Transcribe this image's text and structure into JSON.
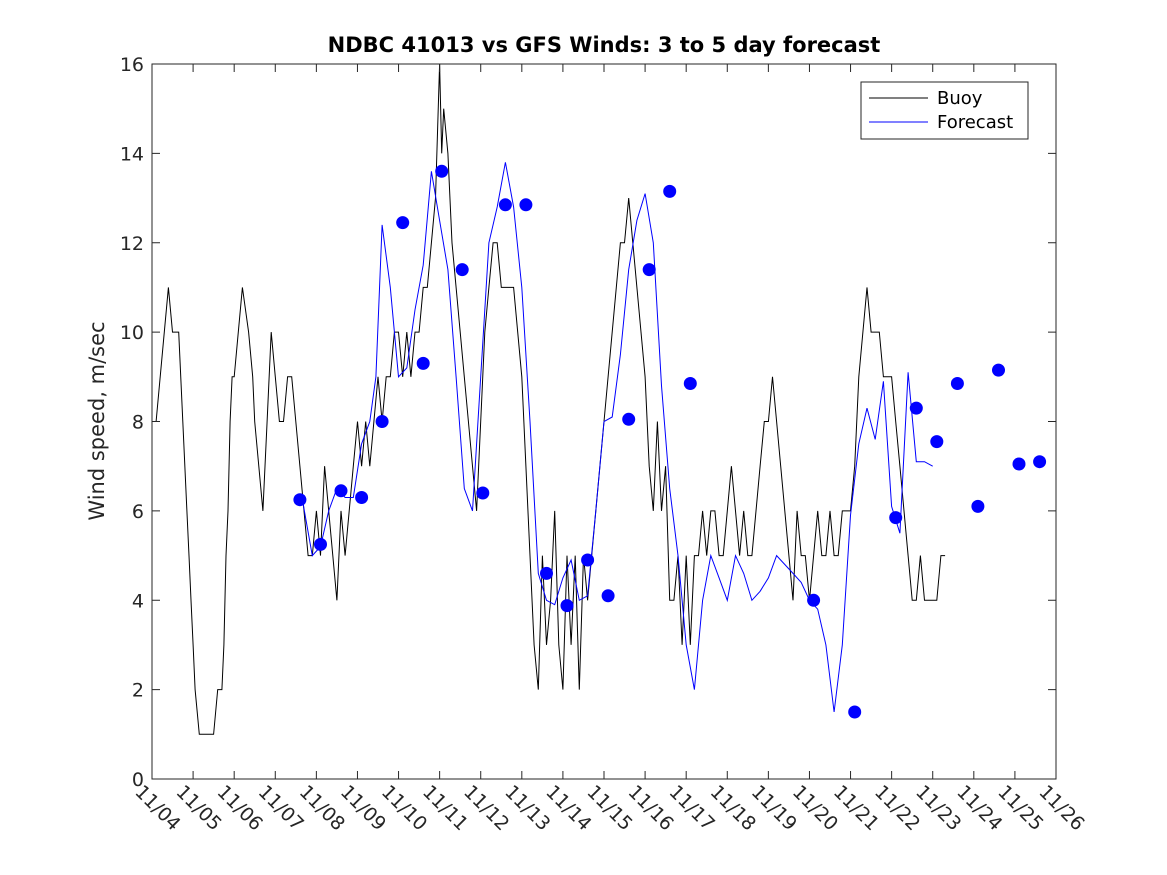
{
  "chart_data": {
    "type": "line",
    "title": "NDBC 41013 vs GFS Winds: 3 to 5 day forecast",
    "xlabel": "",
    "ylabel": "Wind speed, m/sec",
    "xlim": [
      0,
      22
    ],
    "ylim": [
      0,
      16
    ],
    "yticks": [
      0,
      2,
      4,
      6,
      8,
      10,
      12,
      14,
      16
    ],
    "xticks": [
      {
        "pos": 0,
        "label": "11/04"
      },
      {
        "pos": 1,
        "label": "11/05"
      },
      {
        "pos": 2,
        "label": "11/06"
      },
      {
        "pos": 3,
        "label": "11/07"
      },
      {
        "pos": 4,
        "label": "11/08"
      },
      {
        "pos": 5,
        "label": "11/09"
      },
      {
        "pos": 6,
        "label": "11/10"
      },
      {
        "pos": 7,
        "label": "11/11"
      },
      {
        "pos": 8,
        "label": "11/12"
      },
      {
        "pos": 9,
        "label": "11/13"
      },
      {
        "pos": 10,
        "label": "11/14"
      },
      {
        "pos": 11,
        "label": "11/15"
      },
      {
        "pos": 12,
        "label": "11/16"
      },
      {
        "pos": 13,
        "label": "11/17"
      },
      {
        "pos": 14,
        "label": "11/18"
      },
      {
        "pos": 15,
        "label": "11/19"
      },
      {
        "pos": 16,
        "label": "11/20"
      },
      {
        "pos": 17,
        "label": "11/21"
      },
      {
        "pos": 18,
        "label": "11/22"
      },
      {
        "pos": 19,
        "label": "11/23"
      },
      {
        "pos": 20,
        "label": "11/24"
      },
      {
        "pos": 21,
        "label": "11/25"
      },
      {
        "pos": 22,
        "label": "11/26"
      }
    ],
    "grid": false,
    "legend_position": "top-right",
    "colors": {
      "buoy": "#000000",
      "forecast": "#0000ff"
    },
    "series": [
      {
        "name": "Buoy",
        "color": "#000000",
        "points": [
          [
            0,
            8
          ],
          [
            0.1,
            8
          ],
          [
            0.2,
            9
          ],
          [
            0.3,
            10
          ],
          [
            0.4,
            11
          ],
          [
            0.5,
            10
          ],
          [
            0.65,
            10
          ],
          [
            0.75,
            8
          ],
          [
            0.85,
            6
          ],
          [
            0.9,
            5
          ],
          [
            0.95,
            4
          ],
          [
            1.0,
            3
          ],
          [
            1.05,
            2
          ],
          [
            1.15,
            1
          ],
          [
            1.3,
            1
          ],
          [
            1.5,
            1
          ],
          [
            1.6,
            2
          ],
          [
            1.7,
            2
          ],
          [
            1.75,
            3
          ],
          [
            1.8,
            5
          ],
          [
            1.85,
            6
          ],
          [
            1.9,
            8
          ],
          [
            1.95,
            9
          ],
          [
            2.0,
            9
          ],
          [
            2.1,
            10
          ],
          [
            2.2,
            11
          ],
          [
            2.35,
            10
          ],
          [
            2.45,
            9
          ],
          [
            2.5,
            8
          ],
          [
            2.6,
            7
          ],
          [
            2.7,
            6
          ],
          [
            2.8,
            8
          ],
          [
            2.9,
            10
          ],
          [
            3.0,
            9
          ],
          [
            3.1,
            8
          ],
          [
            3.2,
            8
          ],
          [
            3.3,
            9
          ],
          [
            3.4,
            9
          ],
          [
            3.5,
            8
          ],
          [
            3.6,
            7
          ],
          [
            3.7,
            6
          ],
          [
            3.8,
            5
          ],
          [
            3.9,
            5
          ],
          [
            4.0,
            6
          ],
          [
            4.1,
            5
          ],
          [
            4.2,
            7
          ],
          [
            4.3,
            6
          ],
          [
            4.4,
            5
          ],
          [
            4.5,
            4
          ],
          [
            4.6,
            6
          ],
          [
            4.7,
            5
          ],
          [
            4.8,
            6
          ],
          [
            4.9,
            7
          ],
          [
            5.0,
            8
          ],
          [
            5.1,
            7
          ],
          [
            5.2,
            8
          ],
          [
            5.3,
            7
          ],
          [
            5.4,
            8
          ],
          [
            5.5,
            9
          ],
          [
            5.6,
            8
          ],
          [
            5.7,
            9
          ],
          [
            5.8,
            9
          ],
          [
            5.9,
            10
          ],
          [
            6.0,
            10
          ],
          [
            6.1,
            9
          ],
          [
            6.2,
            10
          ],
          [
            6.3,
            9
          ],
          [
            6.4,
            10
          ],
          [
            6.5,
            10
          ],
          [
            6.6,
            11
          ],
          [
            6.7,
            11
          ],
          [
            6.8,
            12
          ],
          [
            6.9,
            13
          ],
          [
            7.0,
            16
          ],
          [
            7.05,
            14
          ],
          [
            7.1,
            15
          ],
          [
            7.2,
            14
          ],
          [
            7.3,
            12
          ],
          [
            7.4,
            11
          ],
          [
            7.5,
            10
          ],
          [
            7.6,
            9
          ],
          [
            7.7,
            8
          ],
          [
            7.8,
            7
          ],
          [
            7.9,
            6
          ],
          [
            8.0,
            8
          ],
          [
            8.1,
            10
          ],
          [
            8.2,
            11
          ],
          [
            8.3,
            12
          ],
          [
            8.4,
            12
          ],
          [
            8.5,
            11
          ],
          [
            8.6,
            11
          ],
          [
            8.7,
            11
          ],
          [
            8.8,
            11
          ],
          [
            8.9,
            10
          ],
          [
            9.0,
            9
          ],
          [
            9.1,
            7
          ],
          [
            9.2,
            5
          ],
          [
            9.3,
            3
          ],
          [
            9.4,
            2
          ],
          [
            9.5,
            5
          ],
          [
            9.6,
            3
          ],
          [
            9.7,
            4
          ],
          [
            9.8,
            6
          ],
          [
            9.9,
            3
          ],
          [
            10.0,
            2
          ],
          [
            10.1,
            5
          ],
          [
            10.2,
            3
          ],
          [
            10.3,
            5
          ],
          [
            10.4,
            2
          ],
          [
            10.5,
            5
          ],
          [
            10.6,
            4
          ],
          [
            10.7,
            5
          ],
          [
            10.8,
            6
          ],
          [
            10.9,
            7
          ],
          [
            11.0,
            8
          ],
          [
            11.1,
            9
          ],
          [
            11.2,
            10
          ],
          [
            11.3,
            11
          ],
          [
            11.4,
            12
          ],
          [
            11.5,
            12
          ],
          [
            11.6,
            13
          ],
          [
            11.7,
            12
          ],
          [
            11.8,
            11
          ],
          [
            11.9,
            10
          ],
          [
            12.0,
            9
          ],
          [
            12.1,
            7
          ],
          [
            12.2,
            6
          ],
          [
            12.3,
            8
          ],
          [
            12.4,
            6
          ],
          [
            12.5,
            7
          ],
          [
            12.6,
            4
          ],
          [
            12.7,
            4
          ],
          [
            12.8,
            5
          ],
          [
            12.9,
            3
          ],
          [
            13.0,
            5
          ],
          [
            13.1,
            3
          ],
          [
            13.2,
            5
          ],
          [
            13.3,
            5
          ],
          [
            13.4,
            6
          ],
          [
            13.5,
            5
          ],
          [
            13.6,
            6
          ],
          [
            13.7,
            6
          ],
          [
            13.8,
            5
          ],
          [
            13.9,
            5
          ],
          [
            14.0,
            6
          ],
          [
            14.1,
            7
          ],
          [
            14.2,
            6
          ],
          [
            14.3,
            5
          ],
          [
            14.4,
            6
          ],
          [
            14.5,
            5
          ],
          [
            14.6,
            5
          ],
          [
            14.7,
            6
          ],
          [
            14.8,
            7
          ],
          [
            14.9,
            8
          ],
          [
            15.0,
            8
          ],
          [
            15.1,
            9
          ],
          [
            15.2,
            8
          ],
          [
            15.3,
            7
          ],
          [
            15.4,
            6
          ],
          [
            15.5,
            5
          ],
          [
            15.6,
            4
          ],
          [
            15.7,
            6
          ],
          [
            15.8,
            5
          ],
          [
            15.9,
            5
          ],
          [
            16.0,
            4
          ],
          [
            16.1,
            5
          ],
          [
            16.2,
            6
          ],
          [
            16.3,
            5
          ],
          [
            16.4,
            5
          ],
          [
            16.5,
            6
          ],
          [
            16.6,
            5
          ],
          [
            16.7,
            5
          ],
          [
            16.8,
            6
          ],
          [
            16.9,
            6
          ],
          [
            17.0,
            6
          ],
          [
            17.1,
            7
          ],
          [
            17.2,
            9
          ],
          [
            17.3,
            10
          ],
          [
            17.4,
            11
          ],
          [
            17.5,
            10
          ],
          [
            17.6,
            10
          ],
          [
            17.7,
            10
          ],
          [
            17.8,
            9
          ],
          [
            17.9,
            9
          ],
          [
            18.0,
            9
          ],
          [
            18.1,
            8
          ],
          [
            18.2,
            7
          ],
          [
            18.3,
            6
          ],
          [
            18.4,
            5
          ],
          [
            18.5,
            4
          ],
          [
            18.6,
            4
          ],
          [
            18.7,
            5
          ],
          [
            18.8,
            4
          ],
          [
            18.9,
            4
          ],
          [
            19.0,
            4
          ],
          [
            19.1,
            4
          ],
          [
            19.2,
            5
          ],
          [
            19.3,
            5
          ]
        ]
      },
      {
        "name": "Forecast",
        "color": "#0000ff",
        "points": [
          [
            3.65,
            6.3
          ],
          [
            3.9,
            5.0
          ],
          [
            4.1,
            5.2
          ],
          [
            4.3,
            6.0
          ],
          [
            4.5,
            6.5
          ],
          [
            4.7,
            6.3
          ],
          [
            4.9,
            6.3
          ],
          [
            5.1,
            7.5
          ],
          [
            5.3,
            8.0
          ],
          [
            5.45,
            9.0
          ],
          [
            5.6,
            12.4
          ],
          [
            5.8,
            11.0
          ],
          [
            6.0,
            9.0
          ],
          [
            6.2,
            9.2
          ],
          [
            6.4,
            10.5
          ],
          [
            6.6,
            11.5
          ],
          [
            6.8,
            13.6
          ],
          [
            7.0,
            12.5
          ],
          [
            7.2,
            11.4
          ],
          [
            7.4,
            9.0
          ],
          [
            7.6,
            6.5
          ],
          [
            7.8,
            6.0
          ],
          [
            8.0,
            9.0
          ],
          [
            8.2,
            12.0
          ],
          [
            8.4,
            12.8
          ],
          [
            8.6,
            13.8
          ],
          [
            8.8,
            12.8
          ],
          [
            9.0,
            11.0
          ],
          [
            9.2,
            8.0
          ],
          [
            9.4,
            4.6
          ],
          [
            9.6,
            4.0
          ],
          [
            9.8,
            3.9
          ],
          [
            10.0,
            4.5
          ],
          [
            10.2,
            4.9
          ],
          [
            10.4,
            4.0
          ],
          [
            10.6,
            4.1
          ],
          [
            10.8,
            6.0
          ],
          [
            11.0,
            8.0
          ],
          [
            11.2,
            8.1
          ],
          [
            11.4,
            9.5
          ],
          [
            11.6,
            11.4
          ],
          [
            11.8,
            12.5
          ],
          [
            12.0,
            13.1
          ],
          [
            12.2,
            12.0
          ],
          [
            12.4,
            8.8
          ],
          [
            12.6,
            6.5
          ],
          [
            12.8,
            5.0
          ],
          [
            13.0,
            3.0
          ],
          [
            13.2,
            2.0
          ],
          [
            13.4,
            4.0
          ],
          [
            13.6,
            5.0
          ],
          [
            13.8,
            4.5
          ],
          [
            14.0,
            4.0
          ],
          [
            14.2,
            5.0
          ],
          [
            14.4,
            4.6
          ],
          [
            14.6,
            4.0
          ],
          [
            14.8,
            4.2
          ],
          [
            15.0,
            4.5
          ],
          [
            15.2,
            5.0
          ],
          [
            15.4,
            4.8
          ],
          [
            15.6,
            4.6
          ],
          [
            15.8,
            4.4
          ],
          [
            16.0,
            4.0
          ],
          [
            16.2,
            3.8
          ],
          [
            16.4,
            3.0
          ],
          [
            16.6,
            1.5
          ],
          [
            16.8,
            3.0
          ],
          [
            17.0,
            5.9
          ],
          [
            17.2,
            7.5
          ],
          [
            17.4,
            8.3
          ],
          [
            17.6,
            7.6
          ],
          [
            17.8,
            8.9
          ],
          [
            18.0,
            6.1
          ],
          [
            18.2,
            5.5
          ],
          [
            18.4,
            9.1
          ],
          [
            18.6,
            7.1
          ],
          [
            18.8,
            7.1
          ],
          [
            19.0,
            7.0
          ]
        ]
      }
    ],
    "markers": [
      [
        3.6,
        6.25
      ],
      [
        4.1,
        5.25
      ],
      [
        4.6,
        6.45
      ],
      [
        5.1,
        6.3
      ],
      [
        5.6,
        8.0
      ],
      [
        6.1,
        12.45
      ],
      [
        6.6,
        9.3
      ],
      [
        7.05,
        13.6
      ],
      [
        7.55,
        11.4
      ],
      [
        8.05,
        6.4
      ],
      [
        8.6,
        12.85
      ],
      [
        9.1,
        12.85
      ],
      [
        9.6,
        4.6
      ],
      [
        10.1,
        3.88
      ],
      [
        10.6,
        4.9
      ],
      [
        11.1,
        4.1
      ],
      [
        11.6,
        8.05
      ],
      [
        12.1,
        11.4
      ],
      [
        12.6,
        13.15
      ],
      [
        13.1,
        8.85
      ],
      [
        16.1,
        4.0
      ],
      [
        17.1,
        1.5
      ],
      [
        18.1,
        5.85
      ],
      [
        18.6,
        8.3
      ],
      [
        19.1,
        7.55
      ],
      [
        19.6,
        8.85
      ],
      [
        20.1,
        6.1
      ],
      [
        20.6,
        9.15
      ],
      [
        21.1,
        7.05
      ],
      [
        21.6,
        7.1
      ]
    ]
  }
}
